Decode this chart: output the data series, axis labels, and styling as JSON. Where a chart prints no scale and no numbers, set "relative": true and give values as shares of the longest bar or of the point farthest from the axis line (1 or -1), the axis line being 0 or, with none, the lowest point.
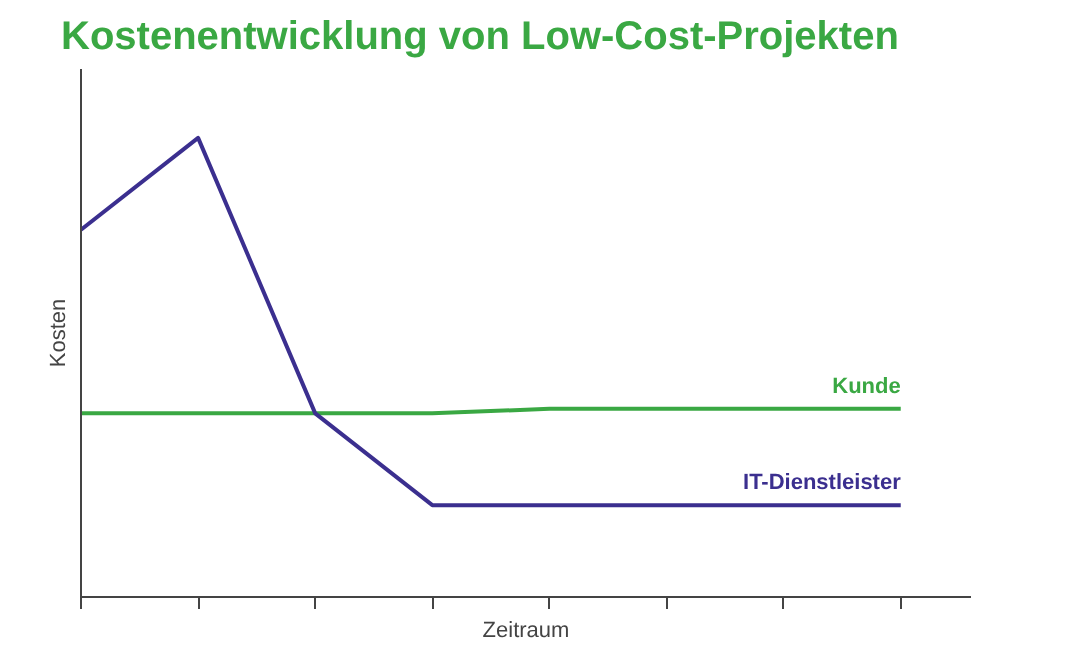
{
  "chart_data": {
    "type": "line",
    "title": "Kostenentwicklung von Low-Cost-Projekten",
    "xlabel": "Zeitraum",
    "ylabel": "Kosten",
    "relative": true,
    "grid": false,
    "marker": "none",
    "line_style": "solid",
    "categories": [
      null,
      null,
      null,
      null,
      null,
      null,
      null,
      null
    ],
    "series": [
      {
        "name": "Kunde",
        "color": "#3aa843",
        "values": [
          0.4,
          0.4,
          0.4,
          0.4,
          0.41,
          0.41,
          0.41,
          0.41
        ]
      },
      {
        "name": "IT-Dienstleister",
        "color": "#3b2f8f",
        "values": [
          0.8,
          1,
          0.4,
          0.2,
          0.2,
          0.2,
          0.2,
          0.2
        ]
      }
    ]
  }
}
